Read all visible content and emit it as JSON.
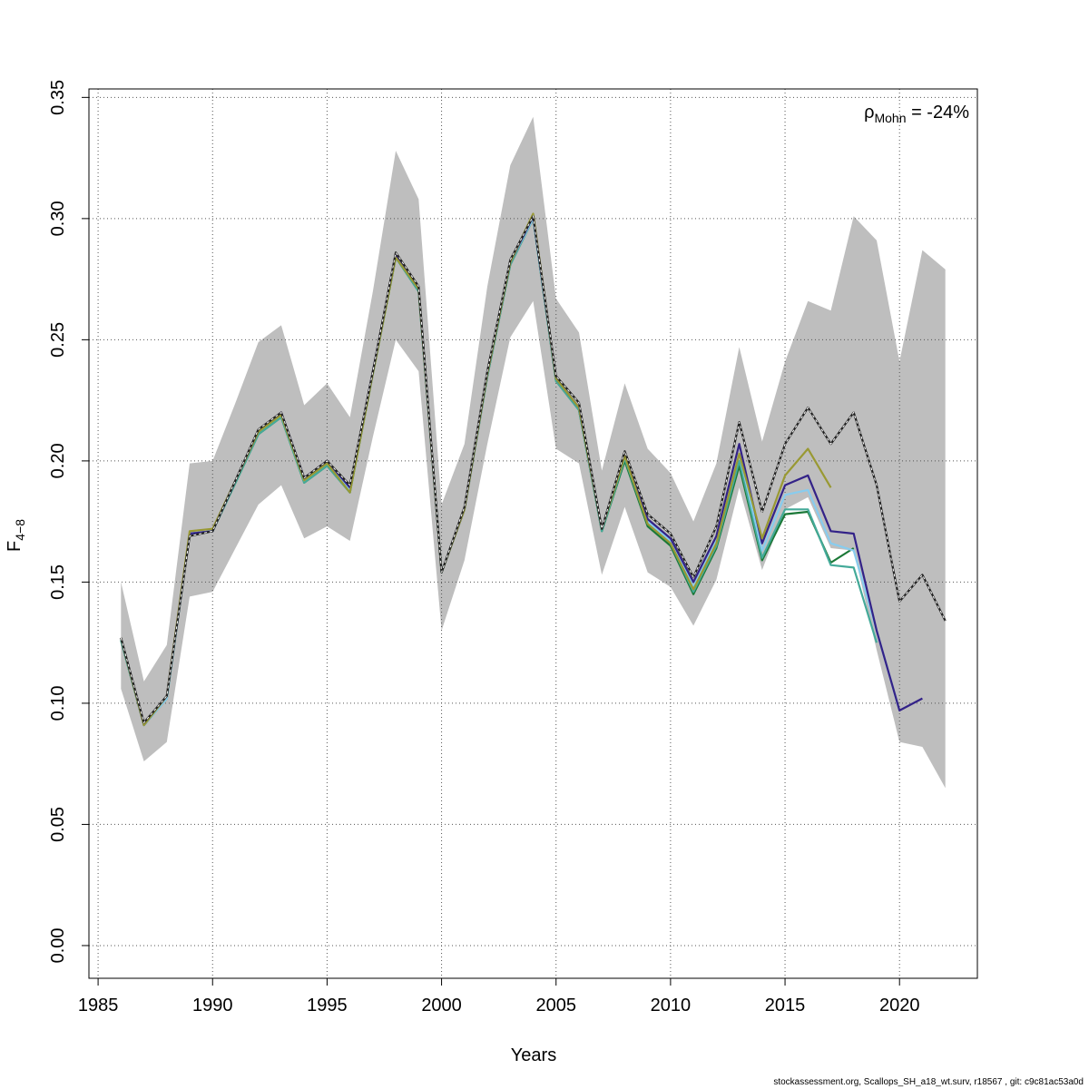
{
  "chart_data": {
    "type": "line",
    "xlabel": "Years",
    "ylabel_main": "F",
    "ylabel_sub": "4−8",
    "xlim": [
      1984.6,
      2023.4
    ],
    "ylim": [
      -0.0135,
      0.3535
    ],
    "xticks": [
      1985,
      1990,
      1995,
      2000,
      2005,
      2010,
      2015,
      2020
    ],
    "yticks": [
      0.0,
      0.05,
      0.1,
      0.15,
      0.2,
      0.25,
      0.3,
      0.35
    ],
    "ytick_labels": [
      "0.00",
      "0.05",
      "0.10",
      "0.15",
      "0.20",
      "0.25",
      "0.30",
      "0.35"
    ],
    "grid": true,
    "annotation": {
      "rho": "ρ",
      "sub": "Mohn",
      "value": " = -24%"
    },
    "confidence_band": {
      "color": "#bebebe",
      "x": [
        1986,
        1987,
        1988,
        1989,
        1990,
        1991,
        1992,
        1993,
        1994,
        1995,
        1996,
        1997,
        1998,
        1999,
        2000,
        2001,
        2002,
        2003,
        2004,
        2005,
        2006,
        2007,
        2008,
        2009,
        2010,
        2011,
        2012,
        2013,
        2014,
        2015,
        2016,
        2017,
        2018,
        2019,
        2020,
        2021,
        2022
      ],
      "lower": [
        0.106,
        0.076,
        0.084,
        0.144,
        0.146,
        0.164,
        0.182,
        0.19,
        0.168,
        0.173,
        0.167,
        0.21,
        0.25,
        0.237,
        0.13,
        0.159,
        0.207,
        0.251,
        0.266,
        0.205,
        0.199,
        0.153,
        0.181,
        0.154,
        0.148,
        0.132,
        0.151,
        0.189,
        0.155,
        0.18,
        0.185,
        0.164,
        0.163,
        0.122,
        0.084,
        0.082,
        0.065
      ],
      "upper": [
        0.15,
        0.109,
        0.124,
        0.199,
        0.2,
        0.224,
        0.249,
        0.256,
        0.223,
        0.232,
        0.218,
        0.27,
        0.328,
        0.308,
        0.182,
        0.207,
        0.272,
        0.322,
        0.342,
        0.267,
        0.253,
        0.196,
        0.232,
        0.205,
        0.195,
        0.175,
        0.199,
        0.247,
        0.208,
        0.241,
        0.266,
        0.262,
        0.301,
        0.291,
        0.241,
        0.287,
        0.279
      ]
    },
    "series": [
      {
        "color": "#1b7837",
        "x": [
          1986,
          1987,
          1988,
          1989,
          1990,
          1991,
          1992,
          1993,
          1994,
          1995,
          1996,
          1997,
          1998,
          1999,
          2000,
          2001,
          2002,
          2003,
          2004,
          2005,
          2006,
          2007,
          2008,
          2009,
          2010,
          2011,
          2012,
          2013,
          2014,
          2015,
          2016,
          2017,
          2018
        ],
        "values": [
          0.126,
          0.091,
          0.102,
          0.17,
          0.171,
          0.191,
          0.211,
          0.218,
          0.191,
          0.198,
          0.187,
          0.236,
          0.284,
          0.27,
          0.154,
          0.18,
          0.235,
          0.281,
          0.3,
          0.233,
          0.221,
          0.171,
          0.2,
          0.173,
          0.165,
          0.145,
          0.164,
          0.198,
          0.159,
          0.178,
          0.179,
          0.158,
          0.164
        ]
      },
      {
        "color": "#44aa99",
        "x": [
          1986,
          1987,
          1988,
          1989,
          1990,
          1991,
          1992,
          1993,
          1994,
          1995,
          1996,
          1997,
          1998,
          1999,
          2000,
          2001,
          2002,
          2003,
          2004,
          2005,
          2006,
          2007,
          2008,
          2009,
          2010,
          2011,
          2012,
          2013,
          2014,
          2015,
          2016,
          2017,
          2018,
          2019
        ],
        "values": [
          0.126,
          0.091,
          0.102,
          0.17,
          0.171,
          0.191,
          0.211,
          0.218,
          0.191,
          0.198,
          0.187,
          0.236,
          0.284,
          0.27,
          0.154,
          0.18,
          0.235,
          0.281,
          0.3,
          0.233,
          0.221,
          0.171,
          0.201,
          0.174,
          0.166,
          0.146,
          0.165,
          0.2,
          0.16,
          0.18,
          0.18,
          0.157,
          0.156,
          0.125
        ]
      },
      {
        "color": "#88ccee",
        "x": [
          1986,
          1987,
          1988,
          1989,
          1990,
          1991,
          1992,
          1993,
          1994,
          1995,
          1996,
          1997,
          1998,
          1999,
          2000,
          2001,
          2002,
          2003,
          2004,
          2005,
          2006,
          2007,
          2008,
          2009,
          2010,
          2011,
          2012,
          2013,
          2014,
          2015,
          2016,
          2017,
          2018,
          2019,
          2020
        ],
        "values": [
          0.127,
          0.091,
          0.102,
          0.17,
          0.171,
          0.192,
          0.212,
          0.219,
          0.192,
          0.199,
          0.188,
          0.236,
          0.285,
          0.271,
          0.154,
          0.18,
          0.236,
          0.282,
          0.3,
          0.234,
          0.222,
          0.172,
          0.202,
          0.175,
          0.167,
          0.148,
          0.167,
          0.203,
          0.163,
          0.186,
          0.188,
          0.166,
          0.163,
          0.13,
          0.097
        ]
      },
      {
        "color": "#332288",
        "x": [
          1986,
          1987,
          1988,
          1989,
          1990,
          1991,
          1992,
          1993,
          1994,
          1995,
          1996,
          1997,
          1998,
          1999,
          2000,
          2001,
          2002,
          2003,
          2004,
          2005,
          2006,
          2007,
          2008,
          2009,
          2010,
          2011,
          2012,
          2013,
          2014,
          2015,
          2016,
          2017,
          2018,
          2019,
          2020,
          2021
        ],
        "values": [
          0.127,
          0.091,
          0.103,
          0.17,
          0.171,
          0.192,
          0.212,
          0.22,
          0.193,
          0.2,
          0.189,
          0.237,
          0.285,
          0.271,
          0.154,
          0.18,
          0.236,
          0.282,
          0.301,
          0.234,
          0.222,
          0.172,
          0.203,
          0.176,
          0.168,
          0.15,
          0.169,
          0.207,
          0.166,
          0.19,
          0.194,
          0.171,
          0.17,
          0.13,
          0.097,
          0.102
        ]
      },
      {
        "color": "#999933",
        "x": [
          1986,
          1987,
          1988,
          1989,
          1990,
          1991,
          1992,
          1993,
          1994,
          1995,
          1996,
          1997,
          1998,
          1999,
          2000,
          2001,
          2002,
          2003,
          2004,
          2005,
          2006,
          2007,
          2008,
          2009,
          2010,
          2011,
          2012,
          2013,
          2014,
          2015,
          2016,
          2017
        ],
        "values": [
          0.127,
          0.091,
          0.103,
          0.171,
          0.172,
          0.192,
          0.212,
          0.219,
          0.192,
          0.199,
          0.187,
          0.236,
          0.284,
          0.271,
          0.154,
          0.18,
          0.236,
          0.282,
          0.302,
          0.234,
          0.222,
          0.172,
          0.202,
          0.174,
          0.166,
          0.147,
          0.166,
          0.203,
          0.168,
          0.194,
          0.205,
          0.189
        ]
      },
      {
        "color": "#222222",
        "dashed_overlay": true,
        "x": [
          1986,
          1987,
          1988,
          1989,
          1990,
          1991,
          1992,
          1993,
          1994,
          1995,
          1996,
          1997,
          1998,
          1999,
          2000,
          2001,
          2002,
          2003,
          2004,
          2005,
          2006,
          2007,
          2008,
          2009,
          2010,
          2011,
          2012,
          2013,
          2014,
          2015,
          2016,
          2017,
          2018,
          2019,
          2020,
          2021,
          2022
        ],
        "values": [
          0.127,
          0.092,
          0.103,
          0.169,
          0.171,
          0.192,
          0.213,
          0.22,
          0.193,
          0.2,
          0.19,
          0.237,
          0.286,
          0.272,
          0.154,
          0.181,
          0.237,
          0.283,
          0.301,
          0.235,
          0.224,
          0.172,
          0.204,
          0.178,
          0.17,
          0.152,
          0.173,
          0.216,
          0.179,
          0.207,
          0.222,
          0.207,
          0.22,
          0.19,
          0.142,
          0.153,
          0.134
        ]
      }
    ]
  },
  "footer": "stockassessment.org, Scallops_SH_a18_wt.surv, r18567 , git: c9c81ac53a0d"
}
